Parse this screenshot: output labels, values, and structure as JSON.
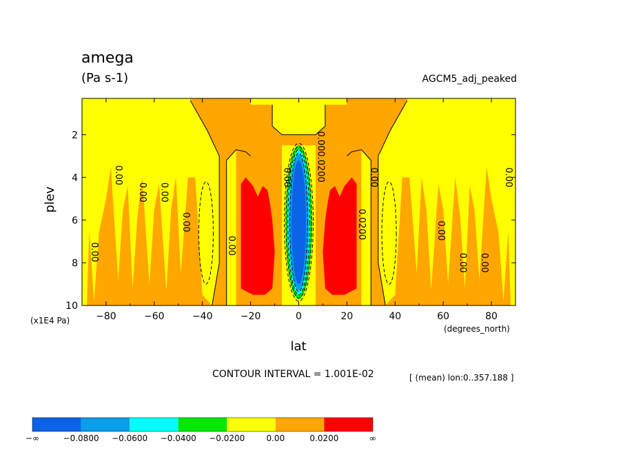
{
  "chart_data": {
    "type": "contour",
    "title": "amega",
    "units": "(Pa s-1)",
    "subtitle_right": "AGCM5_adj_peaked",
    "xlabel": "lat",
    "xunits": "(degrees_north)",
    "ylabel": "plev",
    "yunits": "(x1E4 Pa)",
    "xlim": [
      -90,
      90
    ],
    "ylim": [
      10,
      0.3
    ],
    "x_ticks": [
      -80,
      -60,
      -40,
      -20,
      0,
      20,
      40,
      60,
      80
    ],
    "x_tick_labels": [
      "−80",
      "−60",
      "−40",
      "−20",
      "0",
      "20",
      "40",
      "60",
      "80"
    ],
    "y_ticks": [
      2,
      4,
      6,
      8,
      10
    ],
    "y_tick_labels": [
      "2",
      "4",
      "6",
      "8",
      "10"
    ],
    "footer": "CONTOUR INTERVAL = 1.001E-02",
    "mean_note": "[ (mean) lon:0..357.188 ]",
    "colorbar": {
      "colors": [
        "#0b63e8",
        "#089ee8",
        "#00ffff",
        "#00e800",
        "#ffff00",
        "#ffa600",
        "#ff0000"
      ],
      "labels": [
        "−∞",
        "−0.0800",
        "−0.0600",
        "−0.0400",
        "−0.0200",
        "0.00",
        "0.0200",
        "∞"
      ]
    },
    "contour_labels": [
      {
        "text": "0.00",
        "x": -86,
        "y": 7.5
      },
      {
        "text": "0.00",
        "x": -76,
        "y": 3.9
      },
      {
        "text": "0.00",
        "x": -66,
        "y": 4.7
      },
      {
        "text": "0.00",
        "x": -57,
        "y": 4.7
      },
      {
        "text": "0.00",
        "x": -48,
        "y": 6.1
      },
      {
        "text": "0.00",
        "x": -29,
        "y": 7.2
      },
      {
        "text": "0.00",
        "x": -6,
        "y": 4.0
      },
      {
        "text": "0.0200",
        "x": 8,
        "y": 3.5
      },
      {
        "text": "0.00",
        "x": 8,
        "y": 2.3
      },
      {
        "text": "0.0200",
        "x": 25,
        "y": 6.2
      },
      {
        "text": "0.00",
        "x": 30,
        "y": 4.0
      },
      {
        "text": "0.00",
        "x": 58,
        "y": 6.5
      },
      {
        "text": "0.00",
        "x": 67,
        "y": 8.0
      },
      {
        "text": "0.00",
        "x": 76,
        "y": 8.0
      },
      {
        "text": "0.00",
        "x": 86,
        "y": 4.0
      }
    ]
  }
}
